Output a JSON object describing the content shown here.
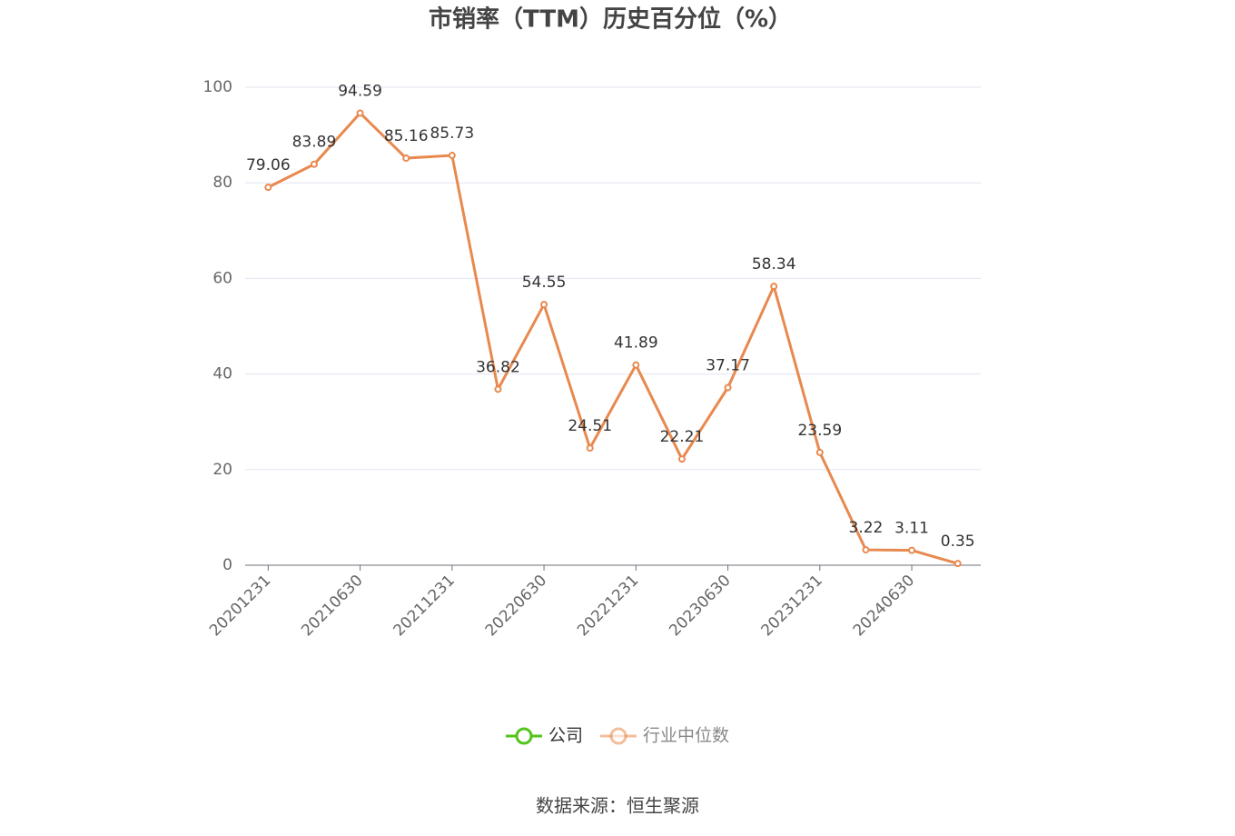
{
  "chart_data": {
    "type": "line",
    "title": "市销率（TTM）历史百分位（%）",
    "categories": [
      "20201231",
      null,
      "20210630",
      null,
      "20211231",
      null,
      "20220630",
      null,
      "20221231",
      null,
      "20230630",
      null,
      "20231231",
      null,
      "20240630",
      null
    ],
    "series": [
      {
        "name": "公司",
        "color": "#52c41a",
        "values": [
          null,
          null,
          null,
          null,
          null,
          null,
          null,
          null,
          null,
          null,
          null,
          null,
          null,
          null,
          null,
          null
        ]
      },
      {
        "name": "行业中位数",
        "color": "#e8894f",
        "values": [
          79.06,
          83.89,
          94.59,
          85.16,
          85.73,
          36.82,
          54.55,
          24.51,
          41.89,
          22.21,
          37.17,
          58.34,
          23.59,
          3.22,
          3.11,
          0.35
        ]
      }
    ],
    "ylim": [
      0,
      100
    ],
    "yticks": [
      0,
      20,
      40,
      60,
      80,
      100
    ],
    "grid": true,
    "source": "数据来源：恒生聚源"
  }
}
